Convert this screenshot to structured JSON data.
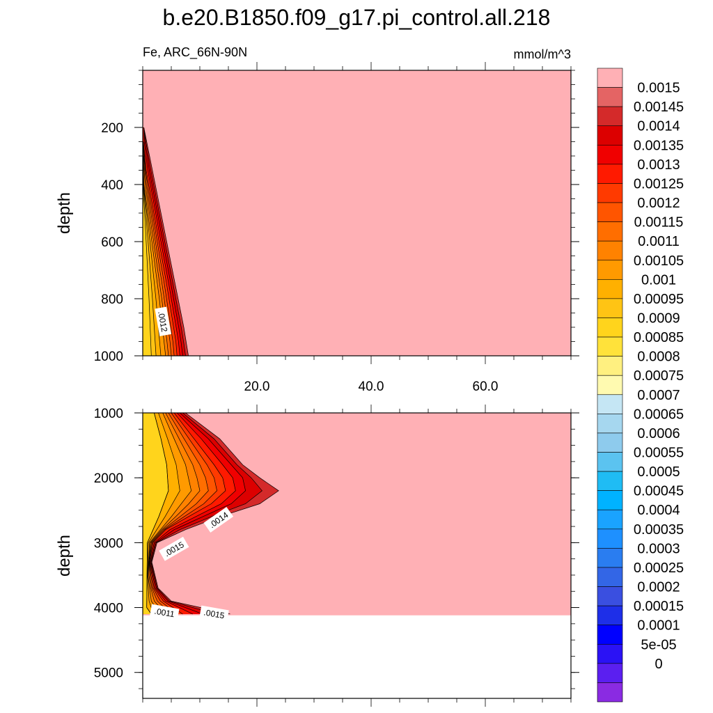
{
  "title": "b.e20.B1850.f09_g17.pi_control.all.218",
  "colors": {
    "cbar": [
      "#8a2be2",
      "#5b1ff0",
      "#2b12f5",
      "#0000ff",
      "#1e2fe8",
      "#3a4fe0",
      "#3366e6",
      "#2a7df0",
      "#1e90ff",
      "#1aa3ff",
      "#00b2ff",
      "#1fbcf4",
      "#5bc3f0",
      "#8ecbed",
      "#a6d7ef",
      "#c5e6f4",
      "#fffab0",
      "#fff080",
      "#ffe23a",
      "#ffd41c",
      "#ffc414",
      "#ffb000",
      "#ff9a00",
      "#ff8200",
      "#ff6e00",
      "#ff5500",
      "#ff3a00",
      "#ff1a00",
      "#f00000",
      "#dc0000",
      "#d42a2a",
      "#e46464",
      "#ffb0b5"
    ],
    "background_fill": "#ffb0b5"
  },
  "colorbar": {
    "labels": [
      "0.0015",
      "0.00145",
      "0.0014",
      "0.00135",
      "0.0013",
      "0.00125",
      "0.0012",
      "0.00115",
      "0.0011",
      "0.00105",
      "0.001",
      "0.00095",
      "0.0009",
      "0.00085",
      "0.0008",
      "0.00075",
      "0.0007",
      "0.00065",
      "0.0006",
      "0.00055",
      "0.0005",
      "0.00045",
      "0.0004",
      "0.00035",
      "0.0003",
      "0.00025",
      "0.0002",
      "0.00015",
      "0.0001",
      "5e-05",
      "0"
    ]
  },
  "chart_data": [
    {
      "type": "contour",
      "panel": "upper",
      "left_string": "Fe, ARC_66N-90N",
      "right_string": "mmol/m^3",
      "ylabel": "depth",
      "xlim": [
        0,
        75
      ],
      "ylim": [
        1000,
        0
      ],
      "y_reversed": true,
      "yticks": [
        200,
        400,
        600,
        800,
        1000
      ],
      "xticks": [
        20.0,
        40.0,
        60.0
      ],
      "xtick_labels": [
        "20.0",
        "40.0",
        "60.0"
      ],
      "contour_labels": [
        {
          "text": ".0012",
          "x": 3.5,
          "y": 880
        }
      ],
      "levels": [
        0.00095,
        0.001,
        0.00105,
        0.0011,
        0.00115,
        0.0012,
        0.00125,
        0.0013,
        0.00135,
        0.0014,
        0.00145,
        0.0015
      ],
      "contours": [
        {
          "level": 0.0015,
          "x_at_depth": [
            [
              200,
              0.2
            ],
            [
              300,
              1.2
            ],
            [
              500,
              3.2
            ],
            [
              700,
              5.2
            ],
            [
              900,
              7.2
            ],
            [
              1000,
              8.0
            ]
          ]
        },
        {
          "level": 0.0013,
          "x_at_depth": [
            [
              250,
              0.1
            ],
            [
              350,
              0.6
            ],
            [
              550,
              2.4
            ],
            [
              750,
              4.2
            ],
            [
              950,
              5.8
            ],
            [
              1000,
              6.0
            ]
          ]
        },
        {
          "level": 0.0011,
          "x_at_depth": [
            [
              300,
              0.05
            ],
            [
              400,
              0.2
            ],
            [
              600,
              1.6
            ],
            [
              800,
              2.9
            ],
            [
              1000,
              4.0
            ]
          ]
        },
        {
          "level": 0.00095,
          "x_at_depth": [
            [
              400,
              0.05
            ],
            [
              600,
              0.6
            ],
            [
              800,
              1.1
            ],
            [
              1000,
              1.5
            ]
          ]
        }
      ]
    },
    {
      "type": "contour",
      "panel": "lower",
      "ylabel": "depth",
      "xlim": [
        0,
        75
      ],
      "ylim": [
        5400,
        1000
      ],
      "y_reversed": true,
      "yticks": [
        1000,
        2000,
        3000,
        4000,
        5000
      ],
      "bottom_depth": 4120,
      "levels": [
        0.00095,
        0.001,
        0.00105,
        0.0011,
        0.00115,
        0.0012,
        0.00125,
        0.0013,
        0.00135,
        0.0014,
        0.00145,
        0.0015
      ],
      "contour_labels": [
        {
          "text": ".0014",
          "x": 13.3,
          "y": 2650
        },
        {
          "text": ".0015",
          "x": 5.5,
          "y": 3100
        },
        {
          "text": ".0011",
          "x": 3.8,
          "y": 4080
        },
        {
          "text": ".0015",
          "x": 12.5,
          "y": 4100
        }
      ],
      "contours": [
        {
          "level": 0.0015,
          "x_at_depth": [
            [
              1000,
              7.5
            ],
            [
              1400,
              13.5
            ],
            [
              1800,
              17.5
            ],
            [
              2000,
              20.5
            ],
            [
              2200,
              23.8
            ],
            [
              2400,
              20.5
            ],
            [
              2600,
              13.5
            ],
            [
              2800,
              7.5
            ],
            [
              3000,
              2.5
            ],
            [
              3300,
              1.6
            ],
            [
              3700,
              2.7
            ],
            [
              3900,
              5.0
            ],
            [
              4100,
              15.3
            ]
          ]
        },
        {
          "level": 0.0014,
          "x_at_depth": [
            [
              1000,
              6.5
            ],
            [
              1400,
              11.5
            ],
            [
              1800,
              15.5
            ],
            [
              2000,
              17.5
            ],
            [
              2200,
              18.0
            ],
            [
              2400,
              15.5
            ],
            [
              2600,
              10.5
            ],
            [
              2800,
              5.5
            ],
            [
              3000,
              2.2
            ],
            [
              3300,
              1.4
            ],
            [
              3700,
              2.4
            ],
            [
              3900,
              4.4
            ],
            [
              4100,
              10.5
            ]
          ]
        },
        {
          "level": 0.0013,
          "x_at_depth": [
            [
              1000,
              5.5
            ],
            [
              1400,
              9.0
            ],
            [
              1800,
              12.5
            ],
            [
              2000,
              14.0
            ],
            [
              2200,
              14.5
            ],
            [
              2400,
              12.0
            ],
            [
              2600,
              8.0
            ],
            [
              2800,
              4.0
            ],
            [
              3000,
              1.8
            ],
            [
              3300,
              1.2
            ],
            [
              3700,
              2.0
            ],
            [
              3900,
              3.6
            ],
            [
              4100,
              7.0
            ]
          ]
        },
        {
          "level": 0.0011,
          "x_at_depth": [
            [
              1000,
              3.5
            ],
            [
              1400,
              5.5
            ],
            [
              1800,
              7.5
            ],
            [
              2200,
              8.5
            ],
            [
              2600,
              5.0
            ],
            [
              3000,
              1.2
            ],
            [
              3500,
              0.9
            ],
            [
              3900,
              1.5
            ],
            [
              4100,
              3.0
            ]
          ]
        },
        {
          "level": 0.001,
          "x_at_depth": [
            [
              1000,
              2.0
            ],
            [
              1400,
              3.2
            ],
            [
              1800,
              4.2
            ],
            [
              2200,
              4.5
            ],
            [
              2600,
              2.8
            ],
            [
              3000,
              0.8
            ],
            [
              4000,
              0.7
            ],
            [
              4100,
              1.5
            ]
          ]
        }
      ]
    }
  ]
}
